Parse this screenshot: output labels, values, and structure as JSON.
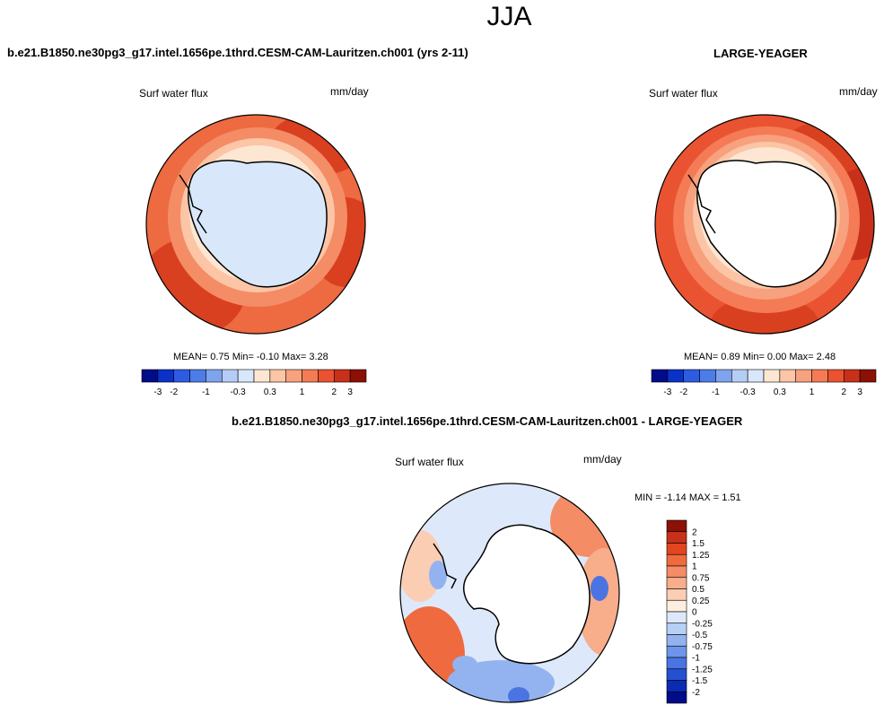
{
  "season": "JJA",
  "left_panel": {
    "case_title": "b.e21.B1850.ne30pg3_g17.intel.1656pe.1thrd.CESM-CAM-Lauritzen.ch001 (yrs 2-11)",
    "variable": "Surf water flux",
    "units": "mm/day",
    "stats_text": "MEAN=  0.75  Min=  -0.10  Max=   3.28"
  },
  "right_panel": {
    "case_title": "LARGE-YEAGER",
    "variable": "Surf water flux",
    "units": "mm/day",
    "stats_text": "MEAN=  0.89  Min=  0.00  Max=   2.48"
  },
  "diff_panel": {
    "case_title": "b.e21.B1850.ne30pg3_g17.intel.1656pe.1thrd.CESM-CAM-Lauritzen.ch001 - LARGE-YEAGER",
    "variable": "Surf water flux",
    "units": "mm/day",
    "stats_text": "MIN = -1.14 MAX =  1.51"
  },
  "chart_data": [
    {
      "type": "heatmap",
      "title": "Surf water flux",
      "projection": "south polar stereographic",
      "units": "mm/day",
      "mean": 0.75,
      "min": -0.1,
      "max": 3.28,
      "colorbar_levels": [
        -3,
        -2,
        -1.5,
        -1,
        -0.5,
        -0.3,
        0,
        0.3,
        0.5,
        1,
        1.5,
        2,
        3
      ],
      "colorbar_tick_labels": [
        "-3",
        "-2",
        "-1",
        "-0.3",
        "0.3",
        "1",
        "2",
        "3"
      ],
      "colorbar_colors": [
        "#000c8a",
        "#0a32c8",
        "#2d5ce3",
        "#4b7ce8",
        "#7ea3ef",
        "#b5cdf6",
        "#d9e7fb",
        "#fde6d2",
        "#fbc5a6",
        "#f7a17e",
        "#f47b55",
        "#ea5331",
        "#c9301a",
        "#8c1005"
      ]
    },
    {
      "type": "heatmap",
      "title": "Surf water flux",
      "projection": "south polar stereographic",
      "units": "mm/day",
      "mean": 0.89,
      "min": 0.0,
      "max": 2.48,
      "colorbar_levels": [
        -3,
        -2,
        -1.5,
        -1,
        -0.5,
        -0.3,
        0,
        0.3,
        0.5,
        1,
        1.5,
        2,
        3
      ],
      "colorbar_tick_labels": [
        "-3",
        "-2",
        "-1",
        "-0.3",
        "0.3",
        "1",
        "2",
        "3"
      ],
      "colorbar_colors": [
        "#000c8a",
        "#0a32c8",
        "#2d5ce3",
        "#4b7ce8",
        "#7ea3ef",
        "#b5cdf6",
        "#d9e7fb",
        "#fde6d2",
        "#fbc5a6",
        "#f7a17e",
        "#f47b55",
        "#ea5331",
        "#c9301a",
        "#8c1005"
      ]
    },
    {
      "type": "heatmap",
      "title": "Surf water flux",
      "projection": "south polar stereographic",
      "units": "mm/day",
      "min": -1.14,
      "max": 1.51,
      "colorbar_levels": [
        2,
        1.5,
        1.25,
        1,
        0.75,
        0.5,
        0.25,
        0,
        -0.25,
        -0.5,
        -0.75,
        -1,
        -1.25,
        -1.5,
        -2
      ],
      "colorbar_tick_labels": [
        "2",
        "1.5",
        "1.25",
        "1",
        "0.75",
        "0.5",
        "0.25",
        "0",
        "-0.25",
        "-0.5",
        "-0.75",
        "-1",
        "-1.25",
        "-1.5",
        "-2"
      ],
      "colorbar_colors": [
        "#8c1005",
        "#c9301a",
        "#e2451f",
        "#f06a3f",
        "#f48c66",
        "#f8ad8b",
        "#fbcdb3",
        "#fdeedf",
        "#dde9fb",
        "#b9d0f6",
        "#93b3f0",
        "#6e95ea",
        "#4a74e2",
        "#2450d2",
        "#0a2bb2",
        "#000c8a"
      ]
    }
  ]
}
